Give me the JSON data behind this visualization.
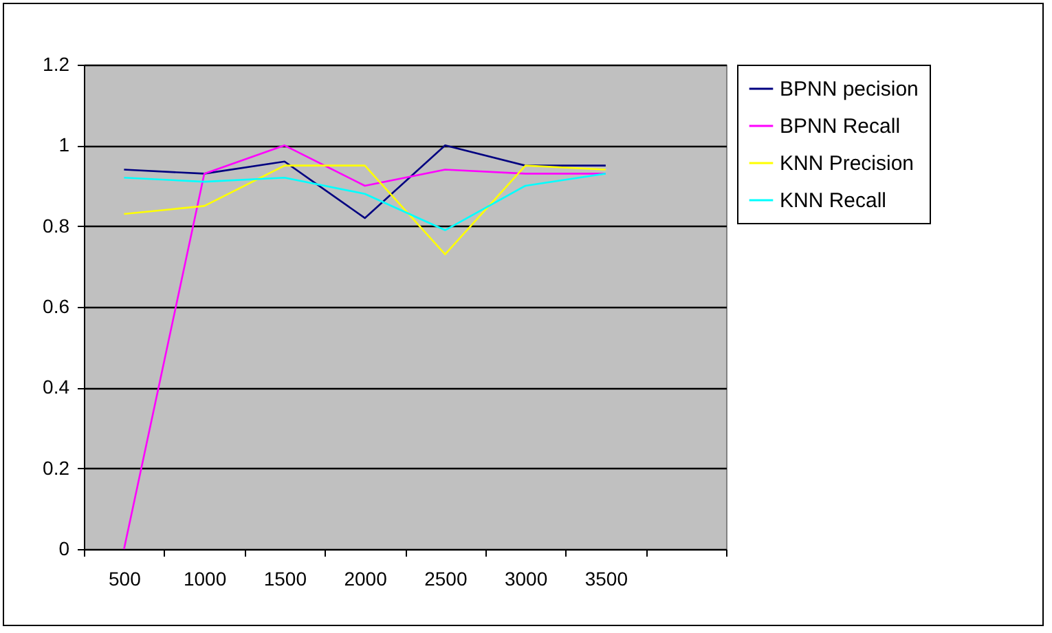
{
  "chart_data": {
    "type": "line",
    "categories": [
      "500",
      "1000",
      "1500",
      "2000",
      "2500",
      "3000",
      "3500",
      null
    ],
    "series": [
      {
        "name": "BPNN pecision",
        "color": "#000080",
        "values": [
          0.94,
          0.93,
          0.96,
          0.82,
          1.0,
          0.95,
          0.95,
          null
        ]
      },
      {
        "name": "BPNN Recall",
        "color": "#ff00ff",
        "values": [
          0,
          0.93,
          1.0,
          0.9,
          0.94,
          0.93,
          0.93,
          null
        ]
      },
      {
        "name": "KNN Precision",
        "color": "#ffff00",
        "values": [
          0.83,
          0.85,
          0.95,
          0.95,
          0.73,
          0.95,
          0.94,
          null
        ]
      },
      {
        "name": "KNN Recall",
        "color": "#00ffff",
        "values": [
          0.92,
          0.91,
          0.92,
          0.88,
          0.79,
          0.9,
          0.93,
          null
        ]
      }
    ],
    "ylim": [
      0,
      1.2
    ],
    "yticks": [
      0,
      0.2,
      0.4,
      0.6,
      0.8,
      1,
      1.2
    ],
    "grid": "y",
    "legend": "right",
    "marker": "none",
    "line_style": "solid"
  }
}
